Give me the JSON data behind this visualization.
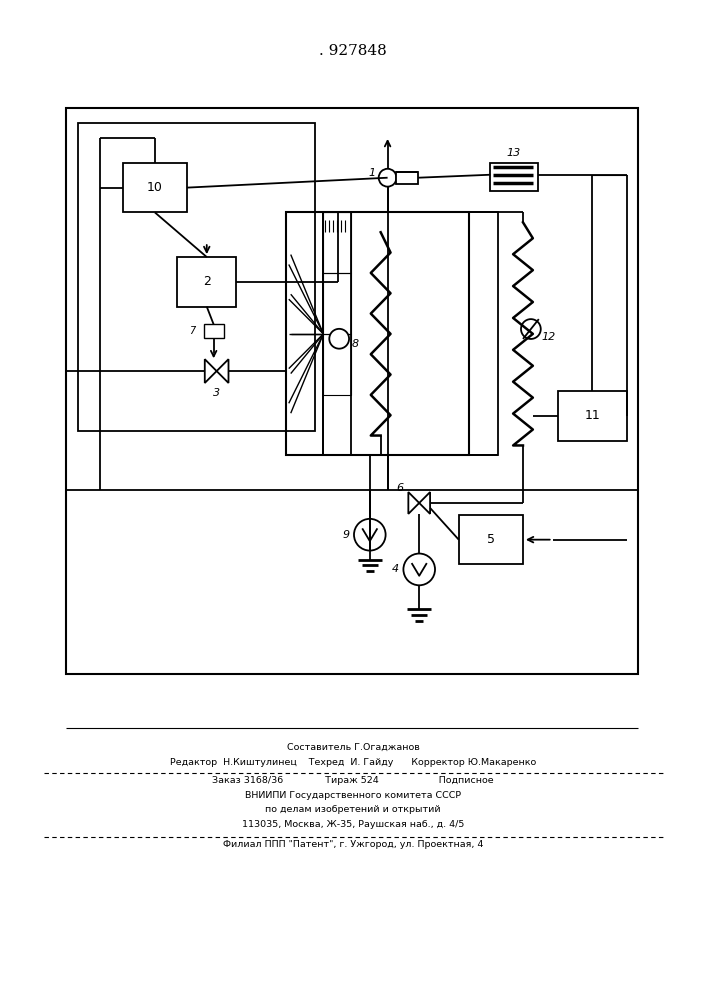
{
  "title": ". 927848",
  "bg_color": "#ffffff",
  "line_color": "#000000",
  "footer_lines": [
    "Составитель Г.Огаджанов",
    "Редактор  Н.Киштулинец    Техред  И. Гайду      Корректор Ю.Макаренко",
    "Заказ 3168/36              Тираж 524                    Подписное",
    "ВНИИПИ Государственного комитета СССР",
    "по делам изобретений и открытий",
    "113035, Москва, Ж-35, Раушская наб., д. 4/5",
    "Филиал ППП \"Патент\", г. Ужгород, ул. Проектная, 4"
  ]
}
